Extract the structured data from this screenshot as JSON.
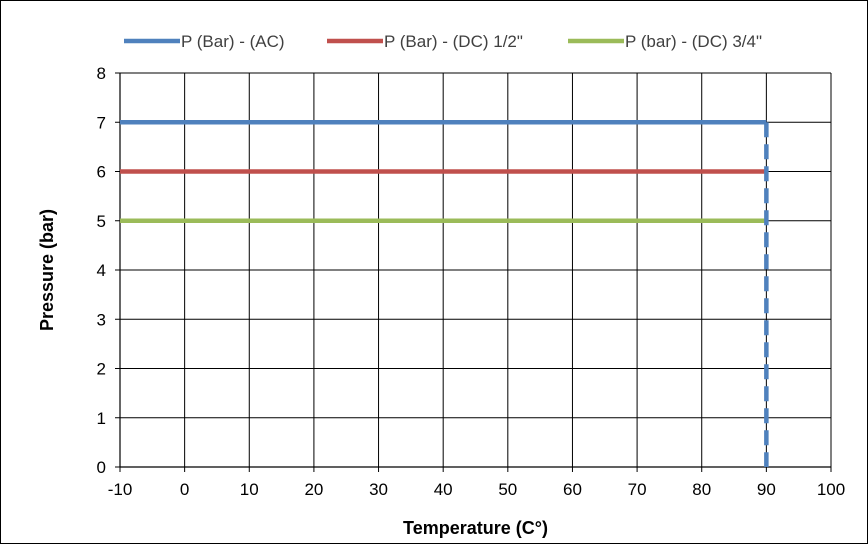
{
  "chart_data": {
    "type": "line",
    "title": "",
    "xlabel": "Temperature (C°)",
    "ylabel": "Pressure (bar)",
    "xlim": [
      -10,
      100
    ],
    "ylim": [
      0,
      8
    ],
    "x_ticks": [
      -10,
      0,
      10,
      20,
      30,
      40,
      50,
      60,
      70,
      80,
      90,
      100
    ],
    "y_ticks": [
      0,
      1,
      2,
      3,
      4,
      5,
      6,
      7,
      8
    ],
    "grid": true,
    "legend_position": "top",
    "series": [
      {
        "name": "P (Bar) - (AC)",
        "color": "#4F81BD",
        "points": [
          [
            -10,
            7
          ],
          [
            90,
            7
          ]
        ],
        "drop_line": {
          "x": 90,
          "from": 7,
          "to": 0,
          "style": "dashed"
        }
      },
      {
        "name": "P (Bar) - (DC) 1/2\"",
        "color": "#C0504D",
        "points": [
          [
            -10,
            6
          ],
          [
            90,
            6
          ]
        ]
      },
      {
        "name": "P (bar) - (DC) 3/4\"",
        "color": "#9BBB59",
        "points": [
          [
            -10,
            5
          ],
          [
            90,
            5
          ]
        ]
      }
    ]
  }
}
